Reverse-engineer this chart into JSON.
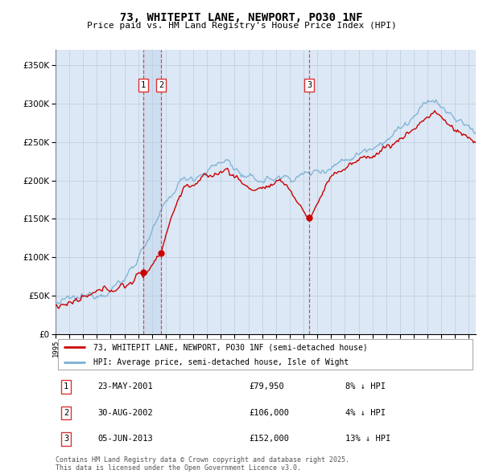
{
  "title": "73, WHITEPIT LANE, NEWPORT, PO30 1NF",
  "subtitle": "Price paid vs. HM Land Registry's House Price Index (HPI)",
  "red_label": "73, WHITEPIT LANE, NEWPORT, PO30 1NF (semi-detached house)",
  "blue_label": "HPI: Average price, semi-detached house, Isle of Wight",
  "footnote": "Contains HM Land Registry data © Crown copyright and database right 2025.\nThis data is licensed under the Open Government Licence v3.0.",
  "transactions": [
    {
      "num": 1,
      "date": "23-MAY-2001",
      "price": 79950,
      "price_str": "£79,950",
      "hpi_diff": "8% ↓ HPI",
      "year": 2001.38
    },
    {
      "num": 2,
      "date": "30-AUG-2002",
      "price": 106000,
      "price_str": "£106,000",
      "hpi_diff": "4% ↓ HPI",
      "year": 2002.66
    },
    {
      "num": 3,
      "date": "05-JUN-2013",
      "price": 152000,
      "price_str": "£152,000",
      "hpi_diff": "13% ↓ HPI",
      "year": 2013.43
    }
  ],
  "ylim": [
    0,
    370000
  ],
  "xlim_start": 1995,
  "xlim_end": 2025.5,
  "background_color": "#dce8f5",
  "plot_bg": "#ffffff",
  "red_color": "#cc0000",
  "blue_color": "#7bafd4",
  "grid_color": "#bbccdd",
  "vline_color": "#dd3333",
  "shade_color": "#c8daf0"
}
